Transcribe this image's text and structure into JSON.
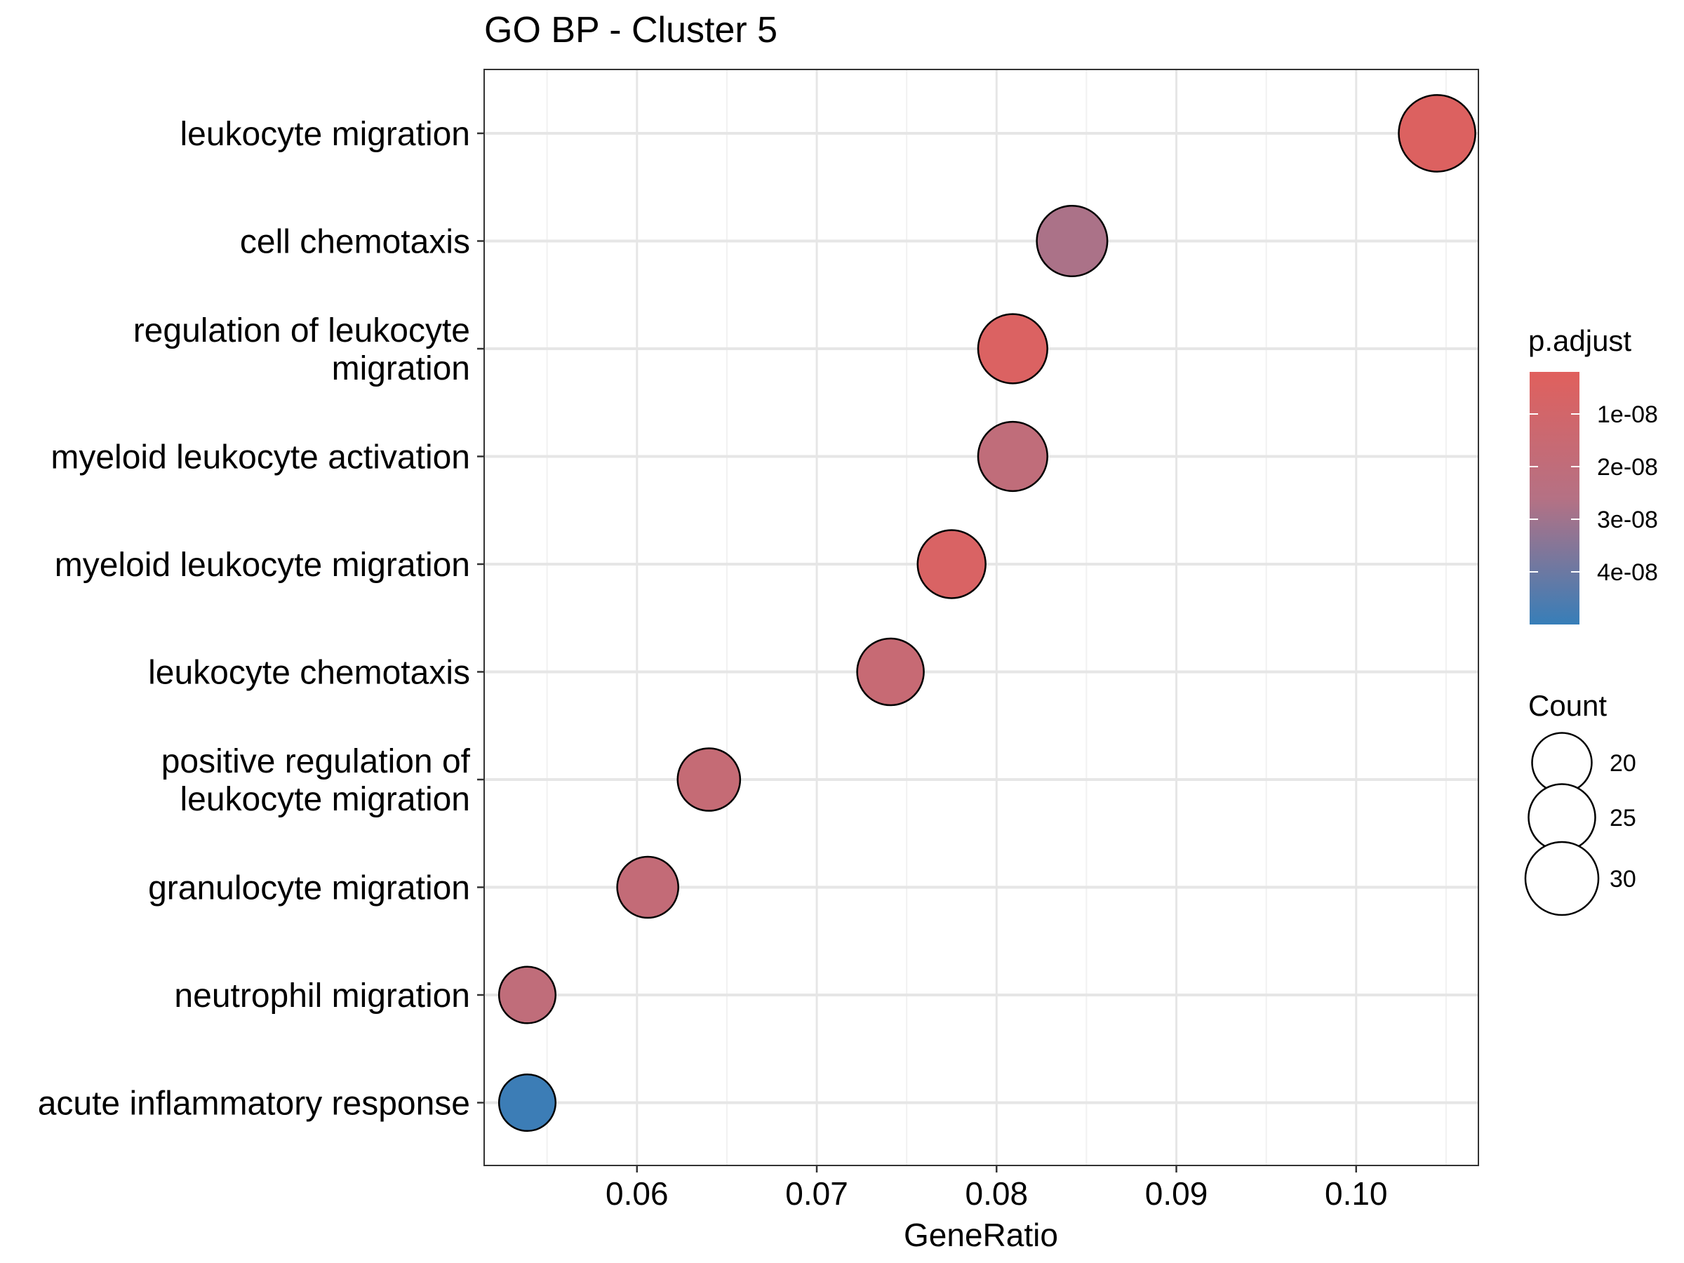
{
  "chart_data": {
    "type": "scatter",
    "title": "GO BP - Cluster 5",
    "xlabel": "GeneRatio",
    "ylabel": "",
    "xlim": [
      0.0515,
      0.1068
    ],
    "x_ticks": [
      0.06,
      0.07,
      0.08,
      0.09,
      0.1
    ],
    "x_tick_labels": [
      "0.06",
      "0.07",
      "0.08",
      "0.09",
      "0.10"
    ],
    "grid": true,
    "categories": [
      [
        "leukocyte migration"
      ],
      [
        "cell chemotaxis"
      ],
      [
        "regulation of leukocyte",
        "migration"
      ],
      [
        "myeloid leukocyte activation"
      ],
      [
        "myeloid leukocyte migration"
      ],
      [
        "leukocyte chemotaxis"
      ],
      [
        "positive regulation of",
        "leukocyte migration"
      ],
      [
        "granulocyte migration"
      ],
      [
        "neutrophil migration"
      ],
      [
        "acute inflammatory response"
      ]
    ],
    "points": [
      {
        "x": 0.1045,
        "count": 33,
        "p_adjust": 4e-09
      },
      {
        "x": 0.0842,
        "count": 28,
        "p_adjust": 2.8e-08
      },
      {
        "x": 0.0809,
        "count": 27,
        "p_adjust": 5e-09
      },
      {
        "x": 0.0809,
        "count": 27,
        "p_adjust": 2e-08
      },
      {
        "x": 0.0775,
        "count": 26,
        "p_adjust": 6e-09
      },
      {
        "x": 0.0741,
        "count": 25,
        "p_adjust": 1.6e-08
      },
      {
        "x": 0.064,
        "count": 22,
        "p_adjust": 1.7e-08
      },
      {
        "x": 0.0606,
        "count": 21,
        "p_adjust": 1.8e-08
      },
      {
        "x": 0.0539,
        "count": 18,
        "p_adjust": 2e-08
      },
      {
        "x": 0.0539,
        "count": 18,
        "p_adjust": 4.9e-08
      }
    ],
    "color_legend": {
      "title": "p.adjust",
      "range": [
        2e-09,
        5e-08
      ],
      "ticks": [
        1e-08,
        2e-08,
        3e-08,
        4e-08
      ],
      "tick_labels": [
        "1e-08",
        "2e-08",
        "3e-08",
        "4e-08"
      ],
      "low_color": "#E0605D",
      "high_color": "#377EB8",
      "placement": "right"
    },
    "size_legend": {
      "title": "Count",
      "values": [
        20,
        25,
        30
      ],
      "labels": [
        "20",
        "25",
        "30"
      ],
      "placement": "right"
    }
  }
}
